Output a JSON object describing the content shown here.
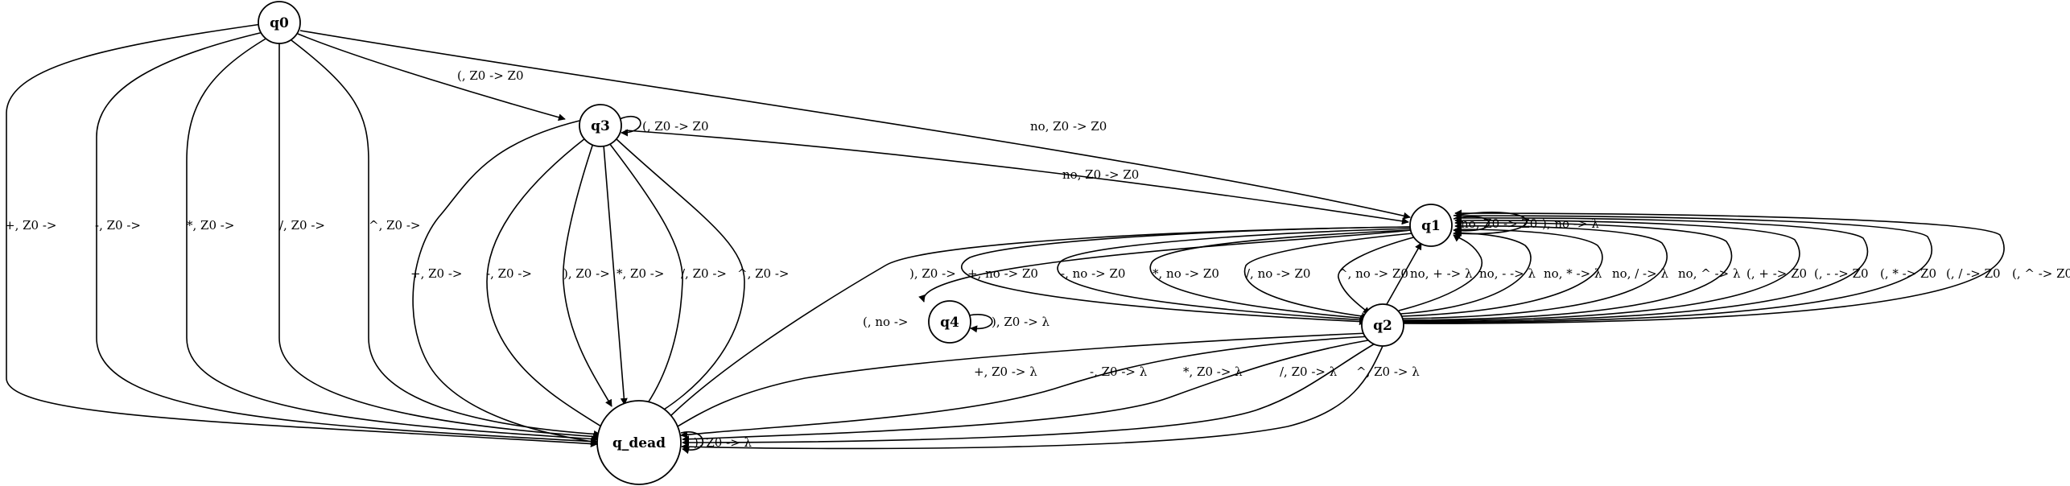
{
  "diagram": {
    "type": "state-machine",
    "nodes": [
      {
        "id": "q0",
        "label": "q0"
      },
      {
        "id": "q3",
        "label": "q3"
      },
      {
        "id": "q1",
        "label": "q1"
      },
      {
        "id": "q4",
        "label": "q4",
        "color": "#1a1adb"
      },
      {
        "id": "q2",
        "label": "q2"
      },
      {
        "id": "q_dead",
        "label": "q_dead"
      }
    ],
    "edges": [
      {
        "id": "e-q0-q3",
        "from": "q0",
        "to": "q3",
        "label": "(, Z0 -> Z0"
      },
      {
        "id": "e-q0-q1",
        "from": "q0",
        "to": "q1",
        "label": "no, Z0 -> Z0"
      },
      {
        "id": "e-q0-dead-plus",
        "from": "q0",
        "to": "q_dead",
        "label": "+, Z0 ->"
      },
      {
        "id": "e-q0-dead-minus",
        "from": "q0",
        "to": "q_dead",
        "label": "-, Z0 ->"
      },
      {
        "id": "e-q0-dead-mul",
        "from": "q0",
        "to": "q_dead",
        "label": "*, Z0 ->"
      },
      {
        "id": "e-q0-dead-div",
        "from": "q0",
        "to": "q_dead",
        "label": "/, Z0 ->"
      },
      {
        "id": "e-q0-dead-pow",
        "from": "q0",
        "to": "q_dead",
        "label": "^, Z0 ->"
      },
      {
        "id": "e-q3-self",
        "from": "q3",
        "to": "q3",
        "label": "(, Z0 -> Z0"
      },
      {
        "id": "e-q3-q1",
        "from": "q3",
        "to": "q1",
        "label": "no, Z0 -> Z0"
      },
      {
        "id": "e-q3-dead-plus",
        "from": "q3",
        "to": "q_dead",
        "label": "+, Z0 ->"
      },
      {
        "id": "e-q3-dead-minus",
        "from": "q3",
        "to": "q_dead",
        "label": "-, Z0 ->"
      },
      {
        "id": "e-q3-dead-rparen",
        "from": "q3",
        "to": "q_dead",
        "label": "), Z0 ->"
      },
      {
        "id": "e-q3-dead-mul",
        "from": "q3",
        "to": "q_dead",
        "label": "*, Z0 ->"
      },
      {
        "id": "e-q3-dead-div",
        "from": "q3",
        "to": "q_dead",
        "label": "/, Z0 ->"
      },
      {
        "id": "e-q3-dead-pow",
        "from": "q3",
        "to": "q_dead",
        "label": "^, Z0 ->"
      },
      {
        "id": "e-q1-self-a",
        "from": "q1",
        "to": "q1",
        "label": "no, Z0 -> Z0"
      },
      {
        "id": "e-q1-self-b",
        "from": "q1",
        "to": "q1",
        "label": "), no -> λ"
      },
      {
        "id": "e-q1-q4",
        "from": "q1",
        "to": "q4",
        "label": "), Z0 ->"
      },
      {
        "id": "e-q1-dead",
        "from": "q1",
        "to": "q_dead",
        "label": "(, no ->"
      },
      {
        "id": "e-q1-q2-plus",
        "from": "q1",
        "to": "q2",
        "label": "+, no -> Z0"
      },
      {
        "id": "e-q1-q2-minus",
        "from": "q1",
        "to": "q2",
        "label": "-, no -> Z0"
      },
      {
        "id": "e-q1-q2-mul",
        "from": "q1",
        "to": "q2",
        "label": "*, no -> Z0"
      },
      {
        "id": "e-q1-q2-div",
        "from": "q1",
        "to": "q2",
        "label": "/, no -> Z0"
      },
      {
        "id": "e-q1-q2-pow",
        "from": "q1",
        "to": "q2",
        "label": "^, no -> Z0"
      },
      {
        "id": "e-q2-q1-plus",
        "from": "q2",
        "to": "q1",
        "label": "no, + -> λ"
      },
      {
        "id": "e-q2-q1-minus",
        "from": "q2",
        "to": "q1",
        "label": "no, - -> λ"
      },
      {
        "id": "e-q2-q1-mul",
        "from": "q2",
        "to": "q1",
        "label": "no, * -> λ"
      },
      {
        "id": "e-q2-q1-div",
        "from": "q2",
        "to": "q1",
        "label": "no, / -> λ"
      },
      {
        "id": "e-q2-q1-pow",
        "from": "q2",
        "to": "q1",
        "label": "no, ^ -> λ"
      },
      {
        "id": "e-q2-q1-lp-plus",
        "from": "q2",
        "to": "q1",
        "label": "(, + -> Z0"
      },
      {
        "id": "e-q2-q1-lp-minus",
        "from": "q2",
        "to": "q1",
        "label": "(, - -> Z0"
      },
      {
        "id": "e-q2-q1-lp-mul",
        "from": "q2",
        "to": "q1",
        "label": "(, * -> Z0"
      },
      {
        "id": "e-q2-q1-lp-div",
        "from": "q2",
        "to": "q1",
        "label": "(, / -> Z0"
      },
      {
        "id": "e-q2-q1-lp-pow",
        "from": "q2",
        "to": "q1",
        "label": "(, ^ -> Z0"
      },
      {
        "id": "e-q4-self",
        "from": "q4",
        "to": "q4",
        "label": "), Z0 -> λ"
      },
      {
        "id": "e-q2-dead-plus",
        "from": "q2",
        "to": "q_dead",
        "label": "+, Z0 -> λ"
      },
      {
        "id": "e-q2-dead-minus",
        "from": "q2",
        "to": "q_dead",
        "label": "-, Z0 -> λ"
      },
      {
        "id": "e-q2-dead-mul",
        "from": "q2",
        "to": "q_dead",
        "label": "*, Z0 -> λ"
      },
      {
        "id": "e-q2-dead-div",
        "from": "q2",
        "to": "q_dead",
        "label": "/, Z0 -> λ"
      },
      {
        "id": "e-q2-dead-pow",
        "from": "q2",
        "to": "q_dead",
        "label": "^, Z0 -> λ"
      },
      {
        "id": "e-dead-self",
        "from": "q_dead",
        "to": "q_dead",
        "label": "), Z0 -> λ"
      }
    ]
  }
}
